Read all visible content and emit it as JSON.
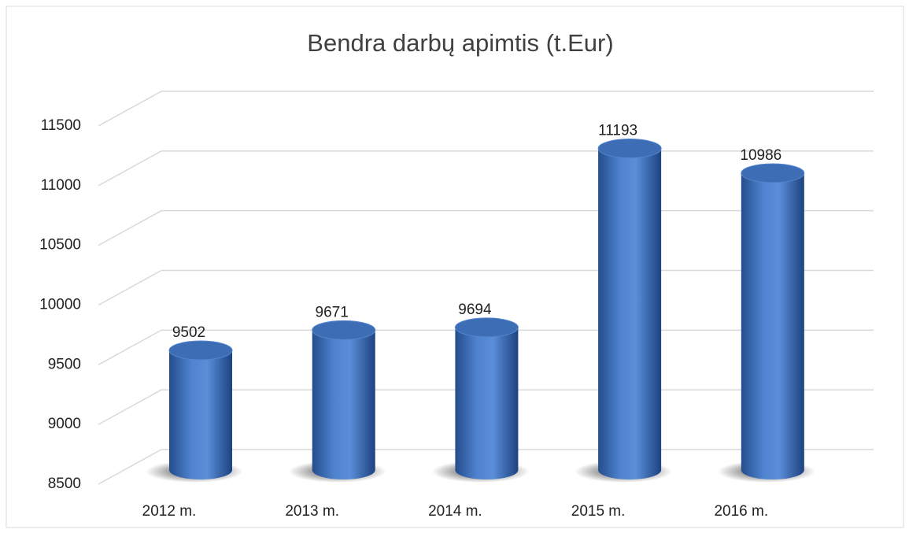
{
  "chart_data": {
    "type": "bar",
    "title": "Bendra darbų apimtis  (t.Eur)",
    "categories": [
      "2012 m.",
      "2013 m.",
      "2014 m.",
      "2015 m.",
      "2016 m."
    ],
    "values": [
      9502,
      9671,
      9694,
      11193,
      10986
    ],
    "color": "#4a7cc4",
    "ylim": [
      8500,
      11500
    ],
    "yticks": [
      8500,
      9000,
      9500,
      10000,
      10500,
      11000,
      11500
    ],
    "grid": true
  }
}
